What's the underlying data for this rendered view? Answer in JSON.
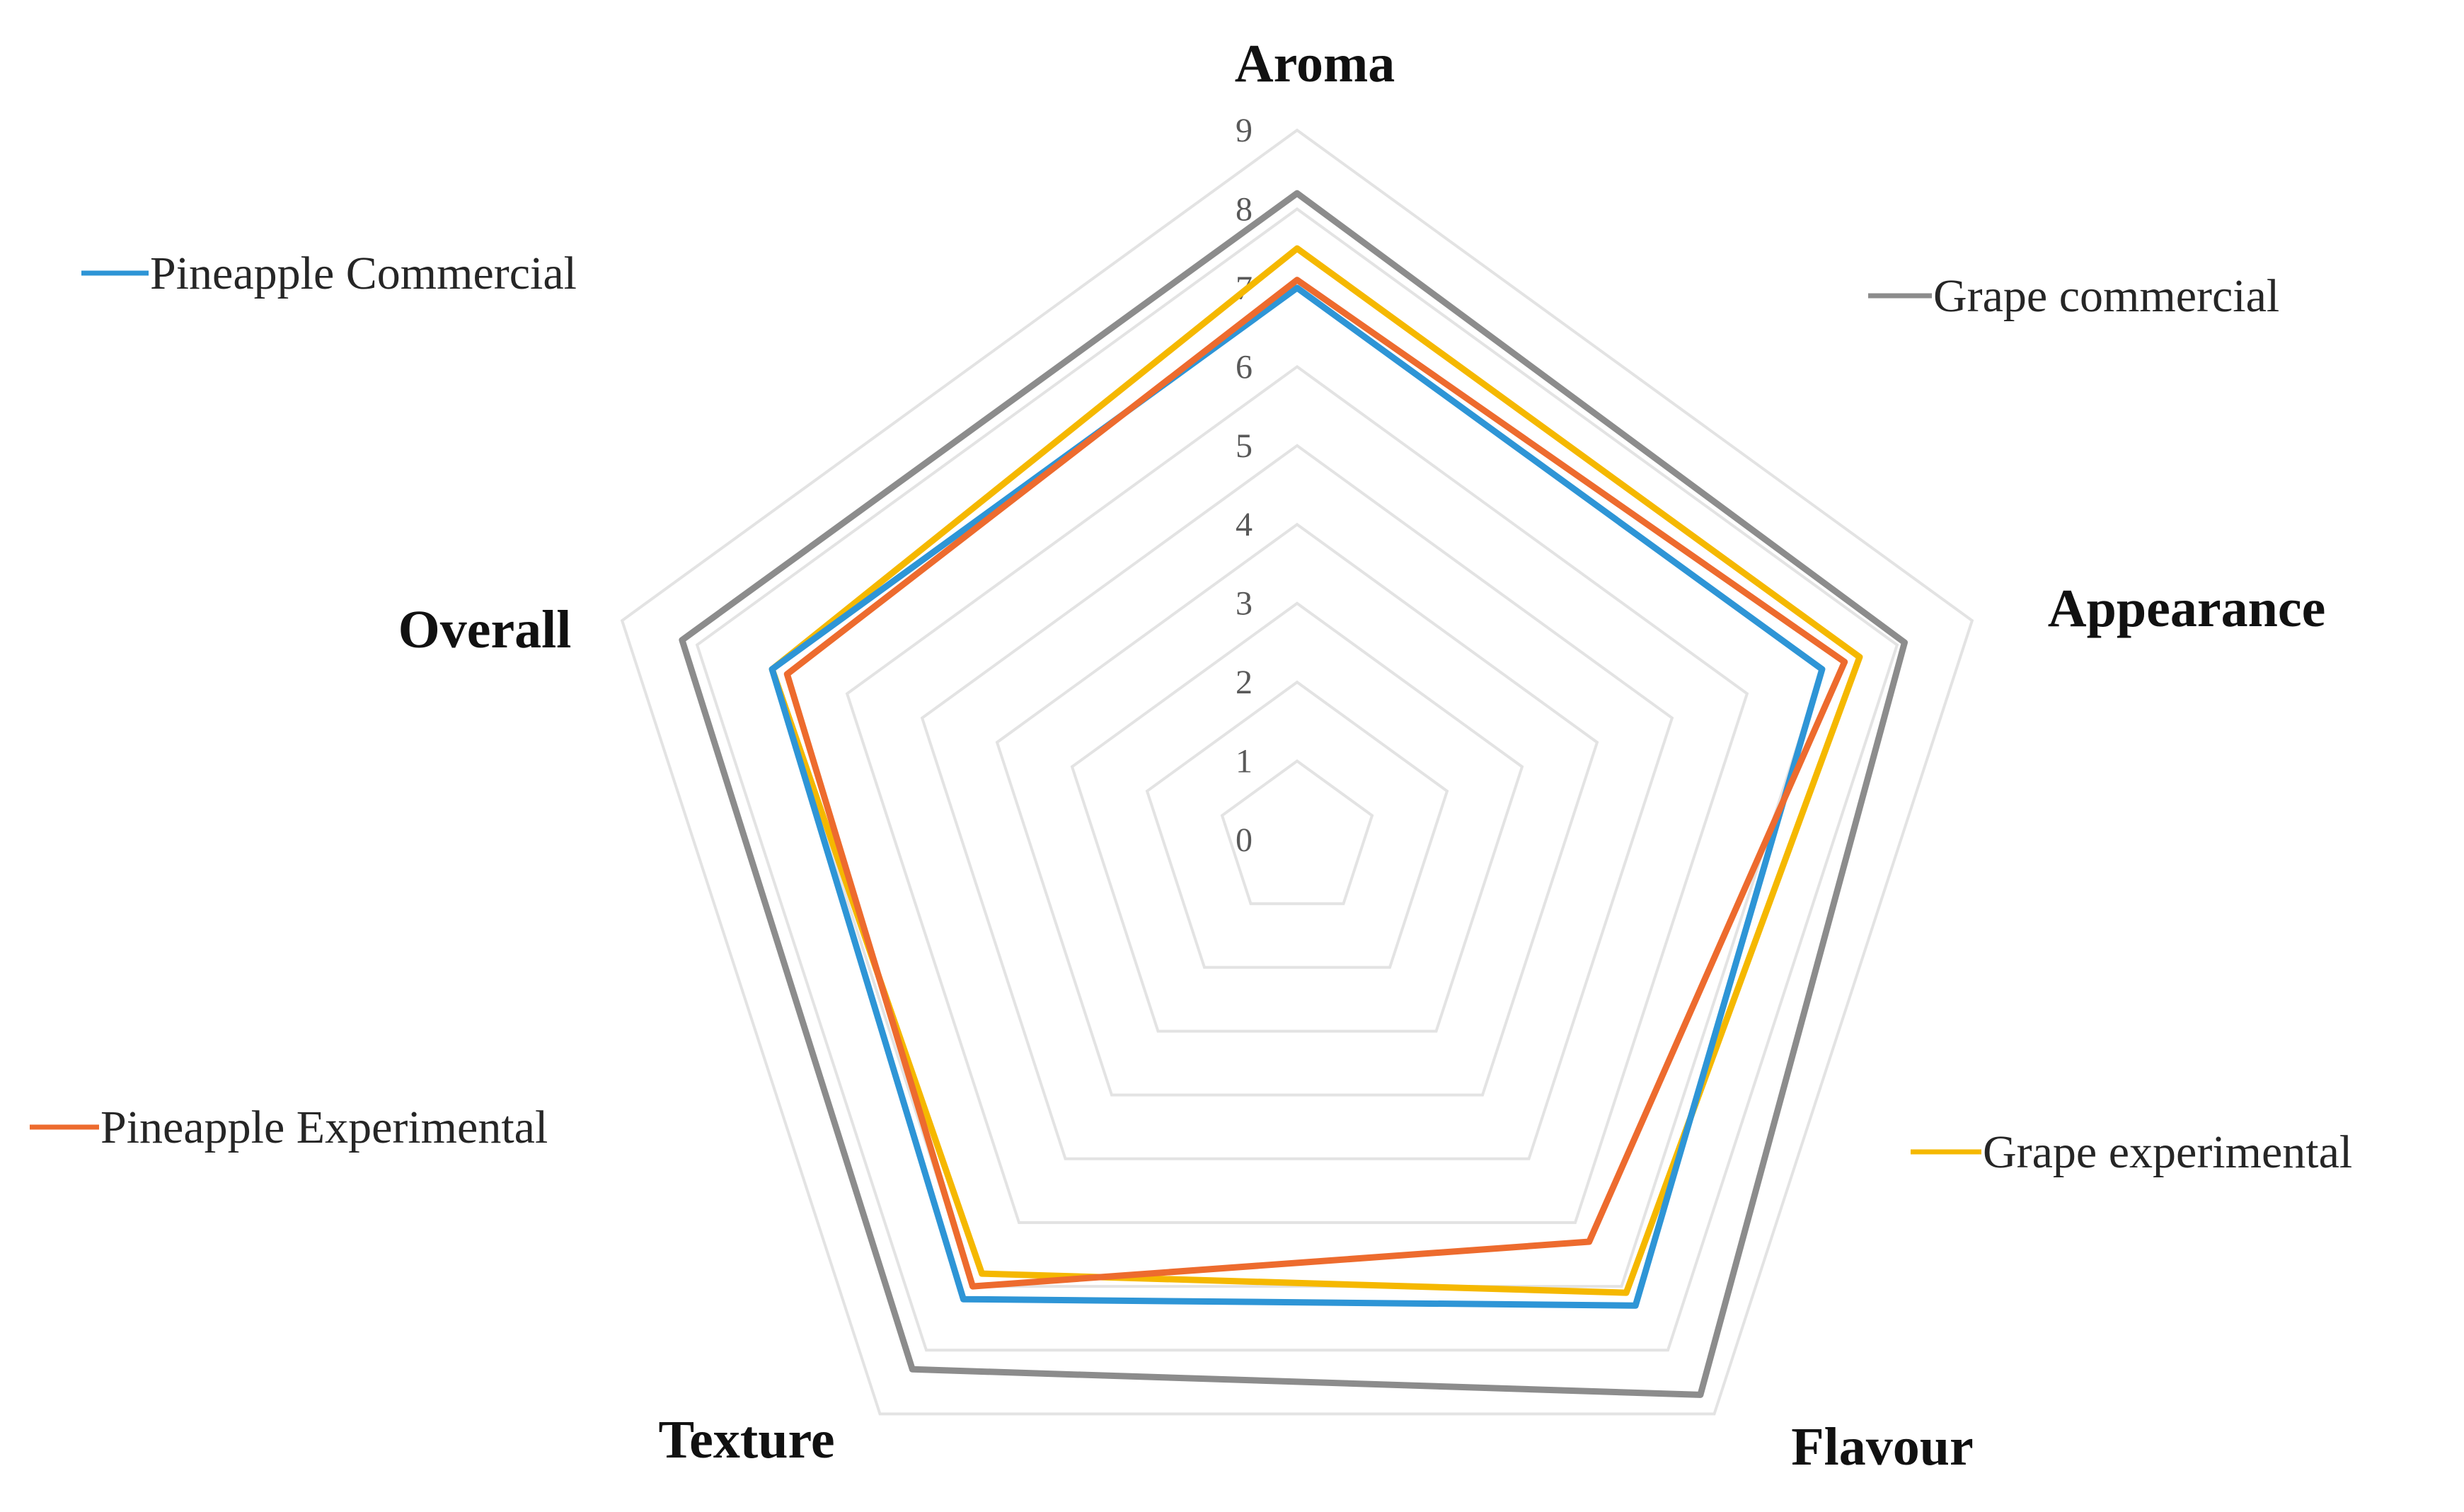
{
  "chart_data": {
    "type": "radar",
    "title": "",
    "axes": [
      "Aroma",
      "Appearance",
      "Flavour",
      "Texture",
      "Overall"
    ],
    "scale": {
      "min": 0,
      "max": 9,
      "step": 1
    },
    "ticks": [
      "0",
      "1",
      "2",
      "3",
      "4",
      "5",
      "6",
      "7",
      "8",
      "9"
    ],
    "grid": true,
    "series": [
      {
        "name": "Grape commercial",
        "color": "#8c8c8c",
        "values": [
          8.2,
          8.1,
          8.7,
          8.3,
          8.2
        ],
        "legend_position": "top-right"
      },
      {
        "name": "Pineapple Commercial",
        "color": "#2e95d6",
        "values": [
          7.0,
          7.0,
          7.3,
          7.2,
          7.0
        ],
        "legend_position": "top-left"
      },
      {
        "name": "Pineapple Experimental",
        "color": "#ed6b2e",
        "values": [
          7.1,
          7.3,
          6.3,
          7.0,
          6.8
        ],
        "legend_position": "bottom-left"
      },
      {
        "name": "Grape experimental",
        "color": "#f5b800",
        "values": [
          7.5,
          7.5,
          7.1,
          6.8,
          7.0
        ],
        "legend_position": "bottom-right"
      }
    ]
  }
}
